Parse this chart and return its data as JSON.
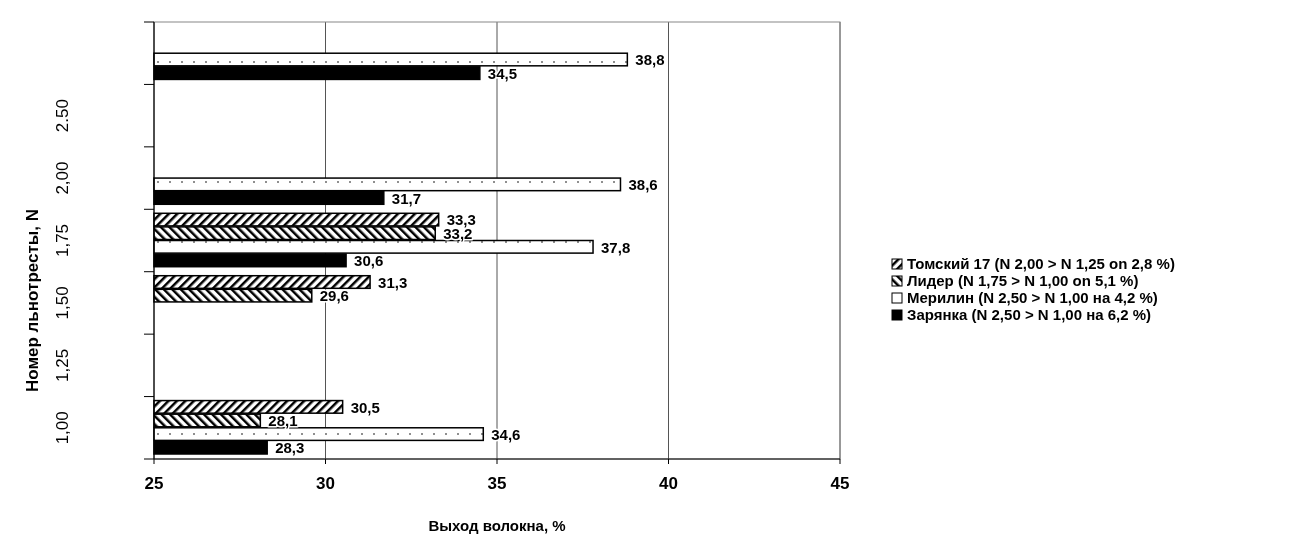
{
  "chart_data": {
    "type": "bar",
    "orientation": "horizontal",
    "xlabel": "Выход волокна, %",
    "ylabel": "Номер льнотресты, N",
    "categories": [
      null,
      "2.50",
      "2,00",
      "1,75",
      "1,50",
      "1,25",
      "1,00"
    ],
    "series": [
      {
        "name": "Томский 17 (N 2,00 > N 1,25 on 2,8 %)",
        "color": "#000000",
        "values": [
          null,
          null,
          null,
          33.3,
          31.3,
          null,
          30.5
        ],
        "value_labels": [
          null,
          null,
          null,
          "33,3",
          "31,3",
          null,
          "30,5"
        ]
      },
      {
        "name": "Лидер (N 1,75 > N 1,00 on 5,1 %)",
        "color": "#000000",
        "values": [
          null,
          null,
          null,
          33.2,
          29.6,
          null,
          28.1
        ],
        "value_labels": [
          null,
          null,
          null,
          "33,2",
          "29,6",
          null,
          "28,1"
        ]
      },
      {
        "name": "Мерилин (N 2,50 > N 1,00 на 4,2 %)",
        "color": "#000000",
        "values": [
          38.8,
          null,
          38.6,
          37.8,
          null,
          null,
          34.6
        ],
        "value_labels": [
          "38,8",
          null,
          "38,6",
          "37,8",
          null,
          null,
          "34,6"
        ]
      },
      {
        "name": "Зарянка (N 2,50 > N 1,00 на 6,2 %)",
        "color": "#000000",
        "values": [
          34.5,
          null,
          31.7,
          30.6,
          null,
          null,
          28.3
        ],
        "value_labels": [
          "34,5",
          null,
          "31,7",
          "30,6",
          null,
          null,
          "28,3"
        ]
      }
    ],
    "xlim": [
      25,
      45
    ],
    "xticks": [
      25,
      30,
      35,
      40,
      45
    ],
    "grid": "x",
    "legend": "right"
  }
}
